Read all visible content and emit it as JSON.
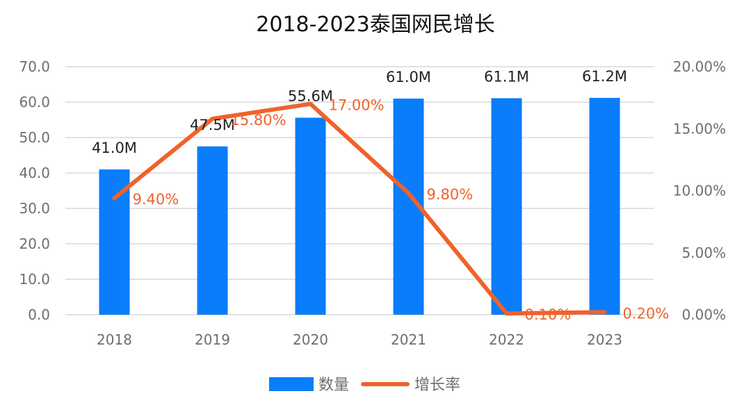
{
  "colors": {
    "bar": "#0a7dfa",
    "line": "#f0622a",
    "grid": "#d9d9d9"
  },
  "chart_data": {
    "type": "bar",
    "title": "2018-2023泰国网民增长",
    "categories": [
      "2018",
      "2019",
      "2020",
      "2021",
      "2022",
      "2023"
    ],
    "series": [
      {
        "name": "数量",
        "type": "bar",
        "axis": "left",
        "values": [
          41.0,
          47.5,
          55.6,
          61.0,
          61.1,
          61.2
        ],
        "labels": [
          "41.0M",
          "47.5M",
          "55.6M",
          "61.0M",
          "61.1M",
          "61.2M"
        ]
      },
      {
        "name": "增长率",
        "type": "line",
        "axis": "right",
        "values": [
          9.4,
          15.8,
          17.0,
          9.8,
          0.1,
          0.2
        ],
        "labels": [
          "9.40%",
          "15.80%",
          "17.00%",
          "9.80%",
          "0.10%",
          "0.20%"
        ]
      }
    ],
    "y_left": {
      "ylim": [
        0,
        70
      ],
      "ticks": [
        "0.0",
        "10.0",
        "20.0",
        "30.0",
        "40.0",
        "50.0",
        "60.0",
        "70.0"
      ]
    },
    "y_right": {
      "ylim": [
        0,
        20
      ],
      "ticks": [
        "0.00%",
        "5.00%",
        "10.00%",
        "15.00%",
        "20.00%"
      ]
    },
    "grid": true,
    "legend": "bottom"
  }
}
